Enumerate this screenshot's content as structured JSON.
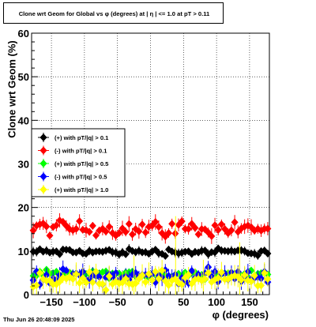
{
  "title": "Clone wrt Geom for Global vs φ (degrees) at |  η  | <= 1.0 at pT > 0.11",
  "timestamp": "Thu Jun 26 20:48:09 2025",
  "chart_data": {
    "type": "scatter",
    "xlabel": "φ (degrees)",
    "ylabel": "Clone wrt Geom (%)",
    "xlim": [
      -180,
      180
    ],
    "ylim": [
      0,
      60
    ],
    "xticks": [
      -150,
      -100,
      -50,
      0,
      50,
      100,
      150
    ],
    "xtick_labels": [
      "−150",
      "−100",
      "−50",
      "0",
      "50",
      "100",
      "150"
    ],
    "yticks": [
      0,
      10,
      20,
      30,
      40,
      50,
      60
    ],
    "ytick_labels": [
      "0",
      "10",
      "20",
      "30",
      "40",
      "50",
      "60"
    ],
    "grid": true,
    "legend_position": "middle-left",
    "series": [
      {
        "name": "(+) with pT/|q| > 0.1",
        "color": "#000000",
        "marker": "diamond",
        "mean": 9.8,
        "spread": 0.7,
        "err": 0.8,
        "spikes": []
      },
      {
        "name": "(-) with pT/|q| > 0.1",
        "color": "#ff0000",
        "marker": "diamond",
        "mean": 15.2,
        "spread": 1.6,
        "err": 1.3,
        "spikes": []
      },
      {
        "name": "(+) with pT/|q| > 0.5",
        "color": "#00ff00",
        "marker": "diamond",
        "mean": 4.6,
        "spread": 0.7,
        "err": 0.7,
        "spikes": []
      },
      {
        "name": "(-) with pT/|q| > 0.5",
        "color": "#0000ff",
        "marker": "diamond",
        "mean": 4.2,
        "spread": 1.4,
        "err": 1.5,
        "spikes": []
      },
      {
        "name": "(+) with pT/|q| > 1.0",
        "color": "#ffff00",
        "marker": "diamond",
        "mean": 3.4,
        "spread": 1.6,
        "err": 2.0,
        "spikes": [
          [
            38,
            18
          ],
          [
            -25,
            9
          ],
          [
            80,
            8
          ],
          [
            135,
            12
          ]
        ]
      }
    ]
  }
}
